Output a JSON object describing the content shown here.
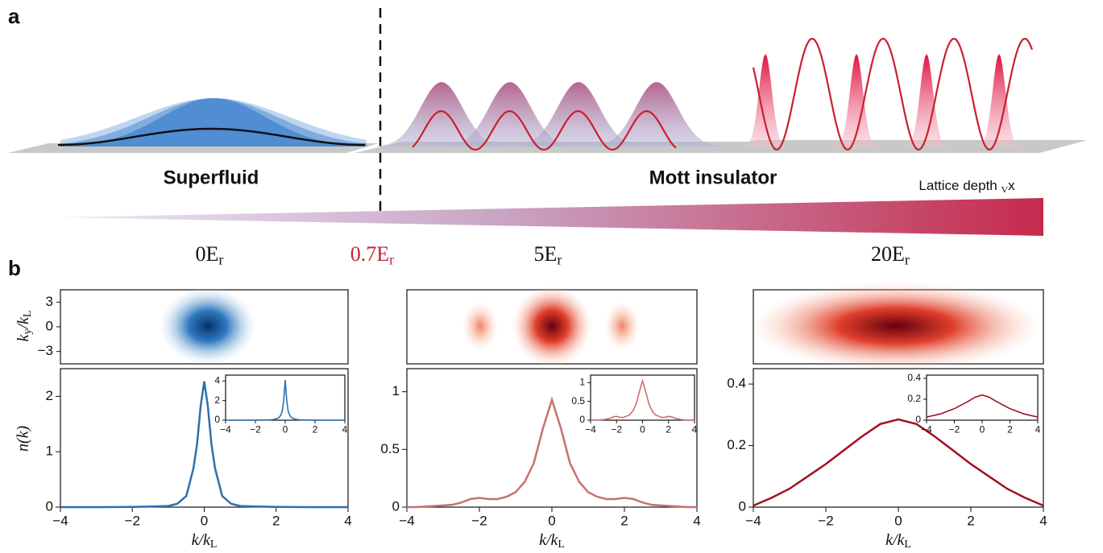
{
  "panel_a": {
    "label": "a",
    "phase_left": "Superfluid",
    "phase_right": "Mott insulator",
    "depth_label": [
      "Lattice depth ",
      "V",
      "x"
    ],
    "energies": [
      {
        "text": [
          "0E",
          "r"
        ],
        "color": "#111111"
      },
      {
        "text": [
          "0.7E",
          "r"
        ],
        "color": "#c0243c"
      },
      {
        "text": [
          "5E",
          "r"
        ],
        "color": "#111111"
      },
      {
        "text": [
          "20E",
          "r"
        ],
        "color": "#111111"
      }
    ]
  },
  "panel_b": {
    "label": "b",
    "heatmap_ylabel": [
      "k",
      "y",
      "/k",
      "L"
    ],
    "heatmap_yticks": [
      {
        "value": 3,
        "label": "3"
      },
      {
        "value": 0,
        "label": "0"
      },
      {
        "value": -3,
        "label": "−3"
      }
    ],
    "heatmap_ylim": [
      -4.5,
      4.5
    ]
  },
  "chart_data": [
    {
      "type": "line",
      "xlabel": [
        "k/k",
        "L"
      ],
      "ylabel": "n(k)",
      "x": [
        -4,
        -3,
        -2,
        -1.5,
        -1,
        -0.75,
        -0.5,
        -0.4,
        -0.3,
        -0.2,
        -0.1,
        0,
        0.1,
        0.2,
        0.3,
        0.4,
        0.5,
        0.75,
        1,
        1.5,
        2,
        3,
        4
      ],
      "series": [
        {
          "color": "#2e6fb0",
          "values": [
            0,
            0,
            0.005,
            0.01,
            0.02,
            0.06,
            0.2,
            0.45,
            0.7,
            1.14,
            1.82,
            2.27,
            1.82,
            1.14,
            0.7,
            0.45,
            0.2,
            0.06,
            0.02,
            0.01,
            0.005,
            0,
            0
          ]
        }
      ],
      "xlim": [
        -4,
        4
      ],
      "xticks": [
        {
          "value": -4,
          "label": "−4"
        },
        {
          "value": -2,
          "label": "−2"
        },
        0,
        2,
        4
      ],
      "ylim": [
        0,
        2.5
      ],
      "yticks": [
        0,
        1,
        2
      ],
      "inset": {
        "x": [
          -4,
          -3,
          -2,
          -1.5,
          -1,
          -0.75,
          -0.5,
          -0.4,
          -0.3,
          -0.2,
          -0.1,
          0,
          0.1,
          0.2,
          0.3,
          0.4,
          0.5,
          0.75,
          1,
          1.5,
          2,
          3,
          4
        ],
        "values": [
          0,
          0,
          0.01,
          0.02,
          0.04,
          0.08,
          0.2,
          0.3,
          0.5,
          0.9,
          2.0,
          4.1,
          2.0,
          0.9,
          0.5,
          0.3,
          0.2,
          0.08,
          0.04,
          0.02,
          0.01,
          0,
          0
        ],
        "xlim": [
          -4,
          4
        ],
        "xticks": [
          {
            "value": -4,
            "label": "−4"
          },
          {
            "value": -2,
            "label": "−2"
          },
          0,
          2,
          4
        ],
        "ylim": [
          0,
          4.6
        ],
        "yticks": [
          0,
          2,
          4
        ]
      }
    },
    {
      "type": "line",
      "xlabel": [
        "k/k",
        "L"
      ],
      "x": [
        -4,
        -3.75,
        -3.5,
        -3.25,
        -3,
        -2.75,
        -2.5,
        -2.25,
        -2,
        -1.75,
        -1.5,
        -1.25,
        -1,
        -0.75,
        -0.5,
        -0.25,
        0,
        0.25,
        0.5,
        0.75,
        1,
        1.25,
        1.5,
        1.75,
        2,
        2.25,
        2.5,
        2.75,
        3,
        3.25,
        3.5,
        3.75,
        4
      ],
      "series": [
        {
          "color": "#c87070",
          "values": [
            0,
            0,
            0.005,
            0.01,
            0.015,
            0.02,
            0.04,
            0.07,
            0.08,
            0.07,
            0.07,
            0.09,
            0.13,
            0.22,
            0.38,
            0.68,
            0.93,
            0.68,
            0.38,
            0.22,
            0.13,
            0.09,
            0.07,
            0.07,
            0.08,
            0.07,
            0.04,
            0.02,
            0.015,
            0.01,
            0.005,
            0,
            0
          ]
        }
      ],
      "xlim": [
        -4,
        4
      ],
      "xticks": [
        {
          "value": -4,
          "label": "−4"
        },
        {
          "value": -2,
          "label": "−2"
        },
        0,
        2,
        4
      ],
      "ylim": [
        0,
        1.2
      ],
      "yticks": [
        0,
        0.5,
        1
      ],
      "inset": {
        "x": [
          -4,
          -3.5,
          -3,
          -2.5,
          -2.25,
          -2,
          -1.75,
          -1.5,
          -1,
          -0.75,
          -0.5,
          -0.25,
          0,
          0.25,
          0.5,
          0.75,
          1,
          1.5,
          1.75,
          2,
          2.25,
          2.5,
          3,
          3.5,
          4
        ],
        "values": [
          0,
          0.005,
          0.015,
          0.05,
          0.09,
          0.1,
          0.08,
          0.07,
          0.14,
          0.24,
          0.42,
          0.75,
          1.05,
          0.75,
          0.42,
          0.24,
          0.14,
          0.07,
          0.08,
          0.1,
          0.09,
          0.05,
          0.015,
          0.005,
          0
        ],
        "xlim": [
          -4,
          4
        ],
        "xticks": [
          {
            "value": -4,
            "label": "−4"
          },
          {
            "value": -2,
            "label": "−2"
          },
          0,
          2,
          4
        ],
        "ylim": [
          0,
          1.2
        ],
        "yticks": [
          0,
          0.5,
          1
        ]
      }
    },
    {
      "type": "line",
      "xlabel": [
        "k/k",
        "L"
      ],
      "x": [
        -4,
        -3.5,
        -3,
        -2.5,
        -2,
        -1.5,
        -1,
        -0.5,
        0,
        0.5,
        1,
        1.5,
        2,
        2.5,
        3,
        3.5,
        4
      ],
      "series": [
        {
          "color": "#a01020",
          "values": [
            0.005,
            0.03,
            0.06,
            0.1,
            0.14,
            0.185,
            0.23,
            0.27,
            0.285,
            0.27,
            0.23,
            0.185,
            0.14,
            0.1,
            0.06,
            0.03,
            0.005
          ]
        }
      ],
      "xlim": [
        -4,
        4
      ],
      "xticks": [
        {
          "value": -4,
          "label": "−4"
        },
        {
          "value": -2,
          "label": "−2"
        },
        0,
        2,
        4
      ],
      "ylim": [
        0,
        0.45
      ],
      "yticks": [
        0,
        0.2,
        0.4
      ],
      "inset": {
        "x": [
          -4,
          -3,
          -2,
          -1,
          -0.5,
          0,
          0.5,
          1,
          2,
          3,
          4
        ],
        "values": [
          0.03,
          0.06,
          0.11,
          0.18,
          0.22,
          0.24,
          0.22,
          0.18,
          0.11,
          0.06,
          0.03
        ],
        "xlim": [
          -4,
          4
        ],
        "xticks": [
          {
            "value": -4,
            "label": "−4"
          },
          {
            "value": -2,
            "label": "−2"
          },
          0,
          2,
          4
        ],
        "ylim": [
          0,
          0.43
        ],
        "yticks": [
          0,
          0.2,
          0.4
        ]
      }
    }
  ]
}
